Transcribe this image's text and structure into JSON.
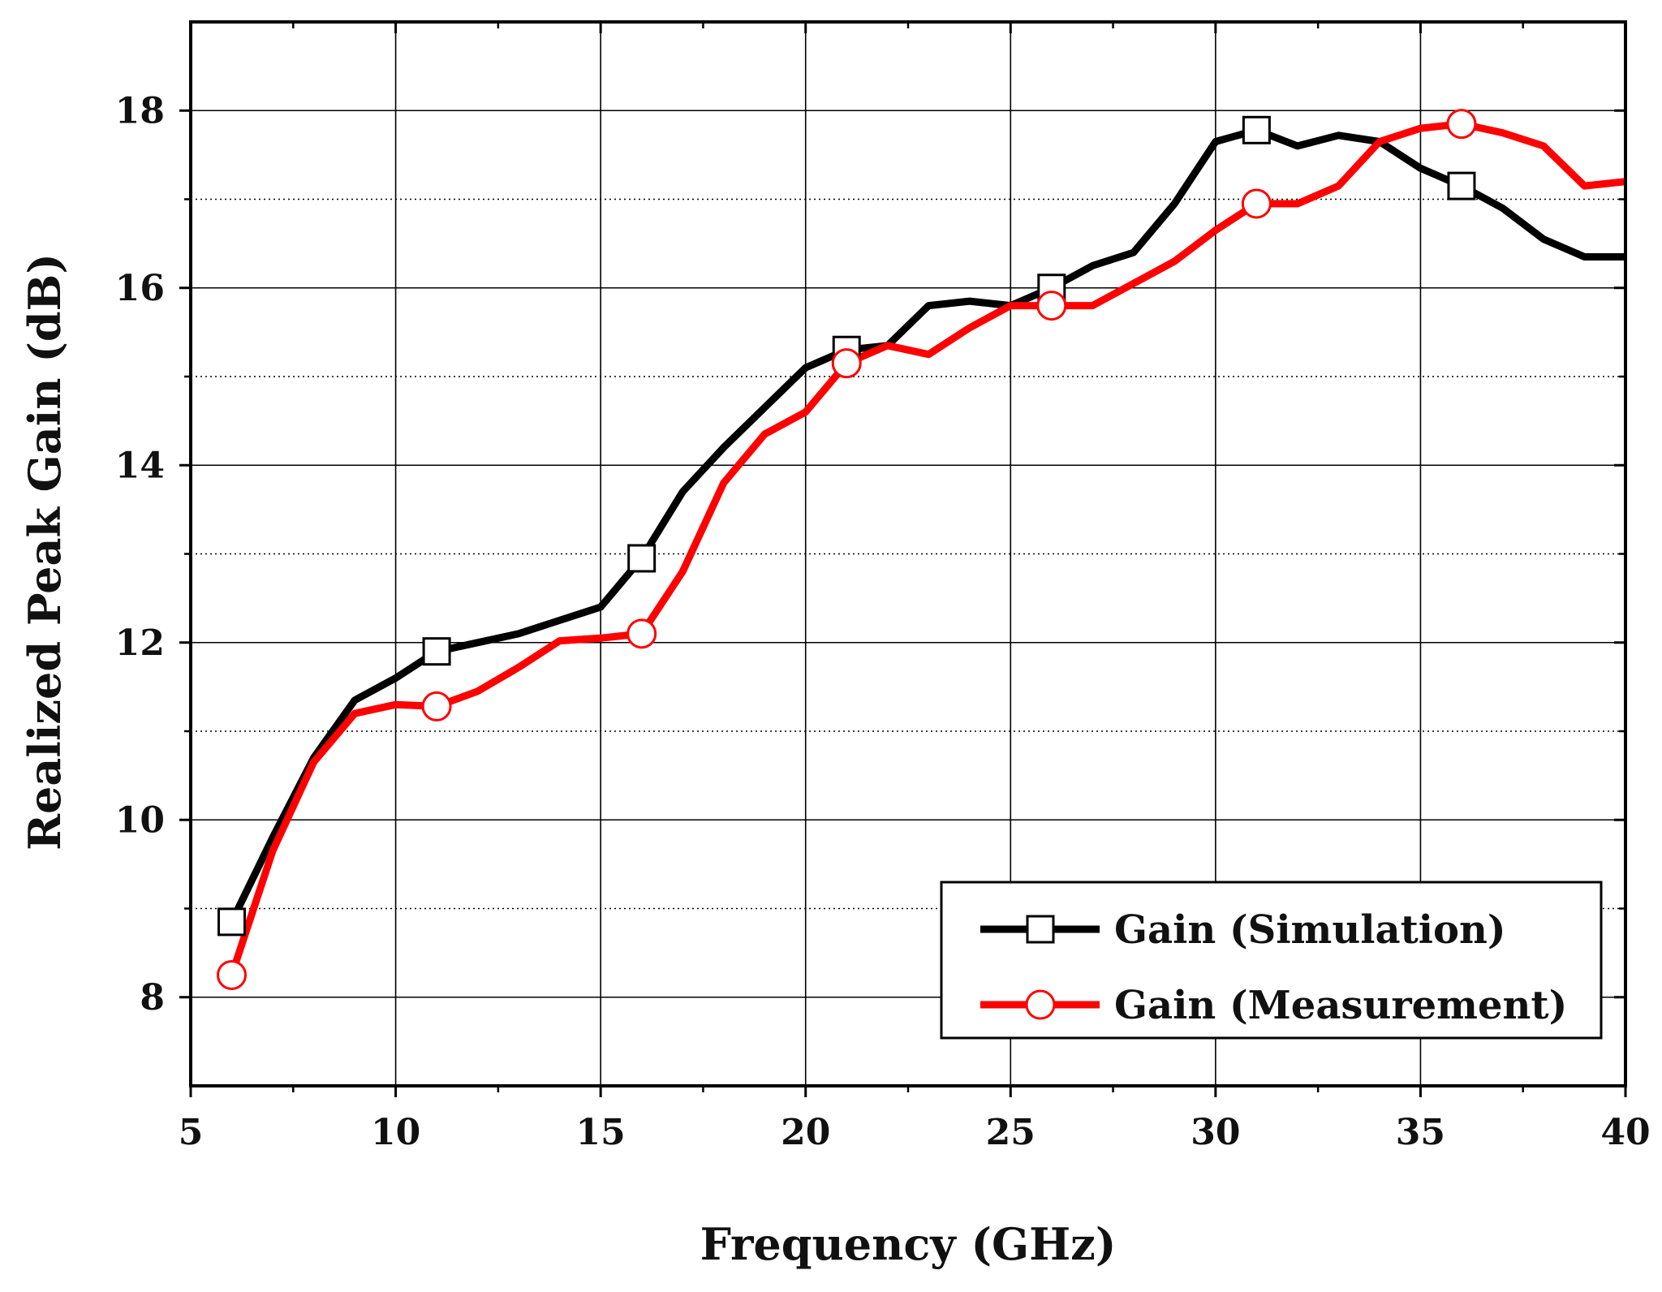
{
  "chart_data": {
    "type": "line",
    "title": "",
    "xlabel": "Frequency (GHz)",
    "ylabel": "Realized Peak Gain (dB)",
    "xlim": [
      5,
      40
    ],
    "ylim": [
      7,
      19
    ],
    "xticks": [
      "5",
      "10",
      "15",
      "20",
      "25",
      "30",
      "35",
      "40"
    ],
    "yticks": [
      "8",
      "10",
      "12",
      "14",
      "16",
      "18"
    ],
    "grid": true,
    "legend_position": "bottom-right",
    "series": [
      {
        "name": "Gain (Simulation)",
        "color": "#000000",
        "marker": "square",
        "x": [
          6,
          7,
          8,
          9,
          10,
          11,
          12,
          13,
          14,
          15,
          16,
          17,
          18,
          19,
          20,
          21,
          22,
          23,
          24,
          25,
          26,
          27,
          28,
          29,
          30,
          31,
          32,
          33,
          34,
          35,
          36,
          37,
          38,
          39,
          40
        ],
        "values": [
          8.85,
          9.8,
          10.7,
          11.35,
          11.6,
          11.9,
          12.0,
          12.1,
          12.25,
          12.4,
          12.95,
          13.7,
          14.2,
          14.65,
          15.1,
          15.3,
          15.35,
          15.8,
          15.85,
          15.8,
          16.0,
          16.25,
          16.4,
          16.95,
          17.65,
          17.78,
          17.6,
          17.72,
          17.65,
          17.35,
          17.15,
          16.9,
          16.55,
          16.35,
          16.35
        ],
        "marker_x": [
          6,
          11,
          16,
          21,
          26,
          31,
          36
        ]
      },
      {
        "name": "Gain (Measurement)",
        "color": "#ff0000",
        "marker": "circle",
        "x": [
          6,
          7,
          8,
          9,
          10,
          11,
          12,
          13,
          14,
          15,
          16,
          17,
          18,
          19,
          20,
          21,
          22,
          23,
          24,
          25,
          26,
          27,
          28,
          29,
          30,
          31,
          32,
          33,
          34,
          35,
          36,
          37,
          38,
          39,
          40
        ],
        "values": [
          8.25,
          9.65,
          10.65,
          11.2,
          11.3,
          11.28,
          11.45,
          11.72,
          12.02,
          12.05,
          12.1,
          12.8,
          13.8,
          14.35,
          14.6,
          15.15,
          15.35,
          15.25,
          15.55,
          15.8,
          15.8,
          15.8,
          16.05,
          16.3,
          16.65,
          16.95,
          16.95,
          17.15,
          17.65,
          17.8,
          17.85,
          17.75,
          17.6,
          17.15,
          17.2
        ],
        "marker_x": [
          6,
          11,
          16,
          21,
          26,
          31,
          36
        ]
      }
    ]
  }
}
